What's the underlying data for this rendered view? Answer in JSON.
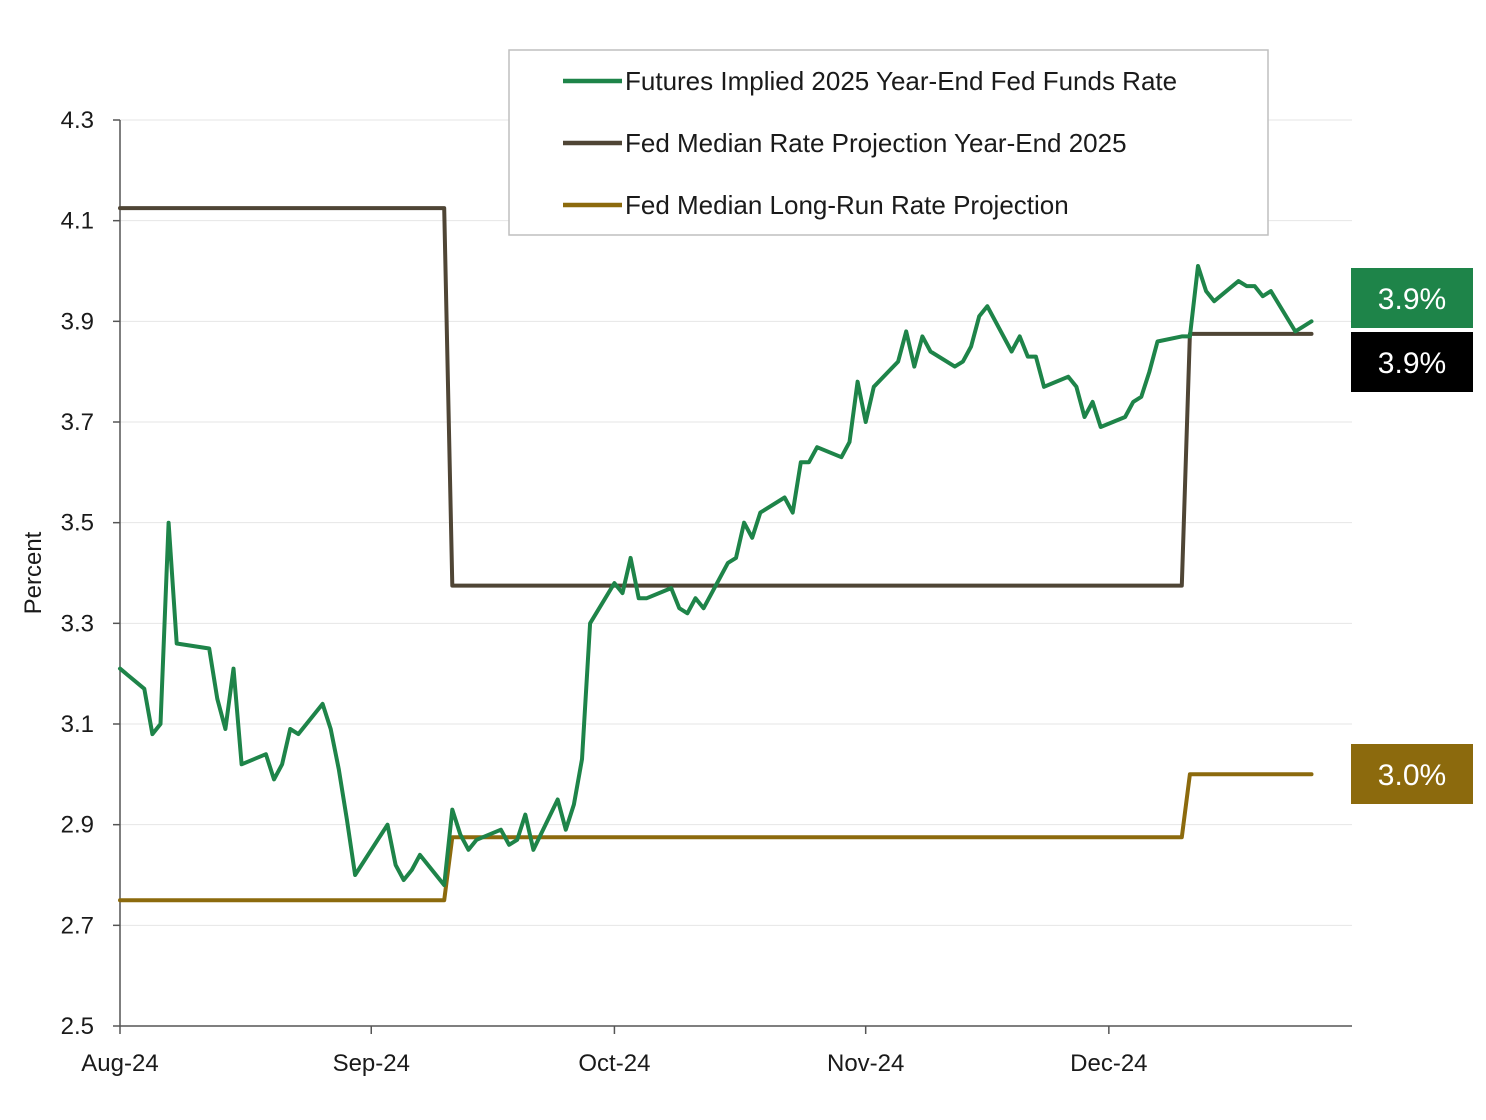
{
  "chart_data": {
    "type": "line",
    "ylabel": "Percent",
    "ylim": [
      2.5,
      4.3
    ],
    "yticks": [
      "2.5",
      "2.7",
      "2.9",
      "3.1",
      "3.3",
      "3.5",
      "3.7",
      "3.9",
      "4.1",
      "4.3"
    ],
    "x_range": [
      "2024-08-01",
      "2024-12-31"
    ],
    "xticks": [
      {
        "date": "2024-08-01",
        "label": "Aug-24"
      },
      {
        "date": "2024-09-01",
        "label": "Sep-24"
      },
      {
        "date": "2024-10-01",
        "label": "Oct-24"
      },
      {
        "date": "2024-11-01",
        "label": "Nov-24"
      },
      {
        "date": "2024-12-01",
        "label": "Dec-24"
      }
    ],
    "grid": "horizontal",
    "legend_position": "top-center",
    "series": [
      {
        "name": "Futures Implied 2025 Year-End Fed Funds Rate",
        "color": "#1e8449",
        "end_label": "3.9%",
        "end_label_bg": "#1e8449",
        "points": [
          [
            "2024-08-01",
            3.21
          ],
          [
            "2024-08-04",
            3.17
          ],
          [
            "2024-08-05",
            3.08
          ],
          [
            "2024-08-06",
            3.1
          ],
          [
            "2024-08-07",
            3.5
          ],
          [
            "2024-08-08",
            3.26
          ],
          [
            "2024-08-12",
            3.25
          ],
          [
            "2024-08-13",
            3.15
          ],
          [
            "2024-08-14",
            3.09
          ],
          [
            "2024-08-15",
            3.21
          ],
          [
            "2024-08-16",
            3.02
          ],
          [
            "2024-08-19",
            3.04
          ],
          [
            "2024-08-20",
            2.99
          ],
          [
            "2024-08-21",
            3.02
          ],
          [
            "2024-08-22",
            3.09
          ],
          [
            "2024-08-23",
            3.08
          ],
          [
            "2024-08-26",
            3.14
          ],
          [
            "2024-08-27",
            3.09
          ],
          [
            "2024-08-28",
            3.01
          ],
          [
            "2024-08-29",
            2.91
          ],
          [
            "2024-08-30",
            2.8
          ],
          [
            "2024-09-03",
            2.9
          ],
          [
            "2024-09-04",
            2.82
          ],
          [
            "2024-09-05",
            2.79
          ],
          [
            "2024-09-06",
            2.81
          ],
          [
            "2024-09-07",
            2.84
          ],
          [
            "2024-09-10",
            2.78
          ],
          [
            "2024-09-11",
            2.93
          ],
          [
            "2024-09-12",
            2.88
          ],
          [
            "2024-09-13",
            2.85
          ],
          [
            "2024-09-14",
            2.87
          ],
          [
            "2024-09-17",
            2.89
          ],
          [
            "2024-09-18",
            2.86
          ],
          [
            "2024-09-19",
            2.87
          ],
          [
            "2024-09-20",
            2.92
          ],
          [
            "2024-09-21",
            2.85
          ],
          [
            "2024-09-24",
            2.95
          ],
          [
            "2024-09-25",
            2.89
          ],
          [
            "2024-09-26",
            2.94
          ],
          [
            "2024-09-27",
            3.03
          ],
          [
            "2024-09-28",
            3.3
          ],
          [
            "2024-10-01",
            3.38
          ],
          [
            "2024-10-02",
            3.36
          ],
          [
            "2024-10-03",
            3.43
          ],
          [
            "2024-10-04",
            3.35
          ],
          [
            "2024-10-05",
            3.35
          ],
          [
            "2024-10-08",
            3.37
          ],
          [
            "2024-10-09",
            3.33
          ],
          [
            "2024-10-10",
            3.32
          ],
          [
            "2024-10-11",
            3.35
          ],
          [
            "2024-10-12",
            3.33
          ],
          [
            "2024-10-15",
            3.42
          ],
          [
            "2024-10-16",
            3.43
          ],
          [
            "2024-10-17",
            3.5
          ],
          [
            "2024-10-18",
            3.47
          ],
          [
            "2024-10-19",
            3.52
          ],
          [
            "2024-10-22",
            3.55
          ],
          [
            "2024-10-23",
            3.52
          ],
          [
            "2024-10-24",
            3.62
          ],
          [
            "2024-10-25",
            3.62
          ],
          [
            "2024-10-26",
            3.65
          ],
          [
            "2024-10-29",
            3.63
          ],
          [
            "2024-10-30",
            3.66
          ],
          [
            "2024-10-31",
            3.78
          ],
          [
            "2024-11-01",
            3.7
          ],
          [
            "2024-11-02",
            3.77
          ],
          [
            "2024-11-05",
            3.82
          ],
          [
            "2024-11-06",
            3.88
          ],
          [
            "2024-11-07",
            3.81
          ],
          [
            "2024-11-08",
            3.87
          ],
          [
            "2024-11-09",
            3.84
          ],
          [
            "2024-11-12",
            3.81
          ],
          [
            "2024-11-13",
            3.82
          ],
          [
            "2024-11-14",
            3.85
          ],
          [
            "2024-11-15",
            3.91
          ],
          [
            "2024-11-16",
            3.93
          ],
          [
            "2024-11-19",
            3.84
          ],
          [
            "2024-11-20",
            3.87
          ],
          [
            "2024-11-21",
            3.83
          ],
          [
            "2024-11-22",
            3.83
          ],
          [
            "2024-11-23",
            3.77
          ],
          [
            "2024-11-26",
            3.79
          ],
          [
            "2024-11-27",
            3.77
          ],
          [
            "2024-11-28",
            3.71
          ],
          [
            "2024-11-29",
            3.74
          ],
          [
            "2024-11-30",
            3.69
          ],
          [
            "2024-12-03",
            3.71
          ],
          [
            "2024-12-04",
            3.74
          ],
          [
            "2024-12-05",
            3.75
          ],
          [
            "2024-12-06",
            3.8
          ],
          [
            "2024-12-07",
            3.86
          ],
          [
            "2024-12-10",
            3.87
          ],
          [
            "2024-12-11",
            3.87
          ],
          [
            "2024-12-12",
            4.01
          ],
          [
            "2024-12-13",
            3.96
          ],
          [
            "2024-12-14",
            3.94
          ],
          [
            "2024-12-17",
            3.98
          ],
          [
            "2024-12-18",
            3.97
          ],
          [
            "2024-12-19",
            3.97
          ],
          [
            "2024-12-20",
            3.95
          ],
          [
            "2024-12-21",
            3.96
          ],
          [
            "2024-12-24",
            3.88
          ],
          [
            "2024-12-25",
            3.89
          ],
          [
            "2024-12-26",
            3.9
          ]
        ]
      },
      {
        "name": "Fed Median Rate Projection Year-End 2025",
        "color": "#4f4535",
        "end_label": "3.9%",
        "end_label_bg": "#000000",
        "points": [
          [
            "2024-08-01",
            4.125
          ],
          [
            "2024-09-10",
            4.125
          ],
          [
            "2024-09-11",
            3.375
          ],
          [
            "2024-12-10",
            3.375
          ],
          [
            "2024-12-11",
            3.875
          ],
          [
            "2024-12-26",
            3.875
          ]
        ]
      },
      {
        "name": "Fed Median Long-Run Rate Projection",
        "color": "#8c6a0d",
        "end_label": "3.0%",
        "end_label_bg": "#8c6a0d",
        "points": [
          [
            "2024-08-01",
            2.75
          ],
          [
            "2024-09-10",
            2.75
          ],
          [
            "2024-09-11",
            2.875
          ],
          [
            "2024-12-10",
            2.875
          ],
          [
            "2024-12-11",
            3.0
          ],
          [
            "2024-12-26",
            3.0
          ]
        ]
      }
    ]
  }
}
